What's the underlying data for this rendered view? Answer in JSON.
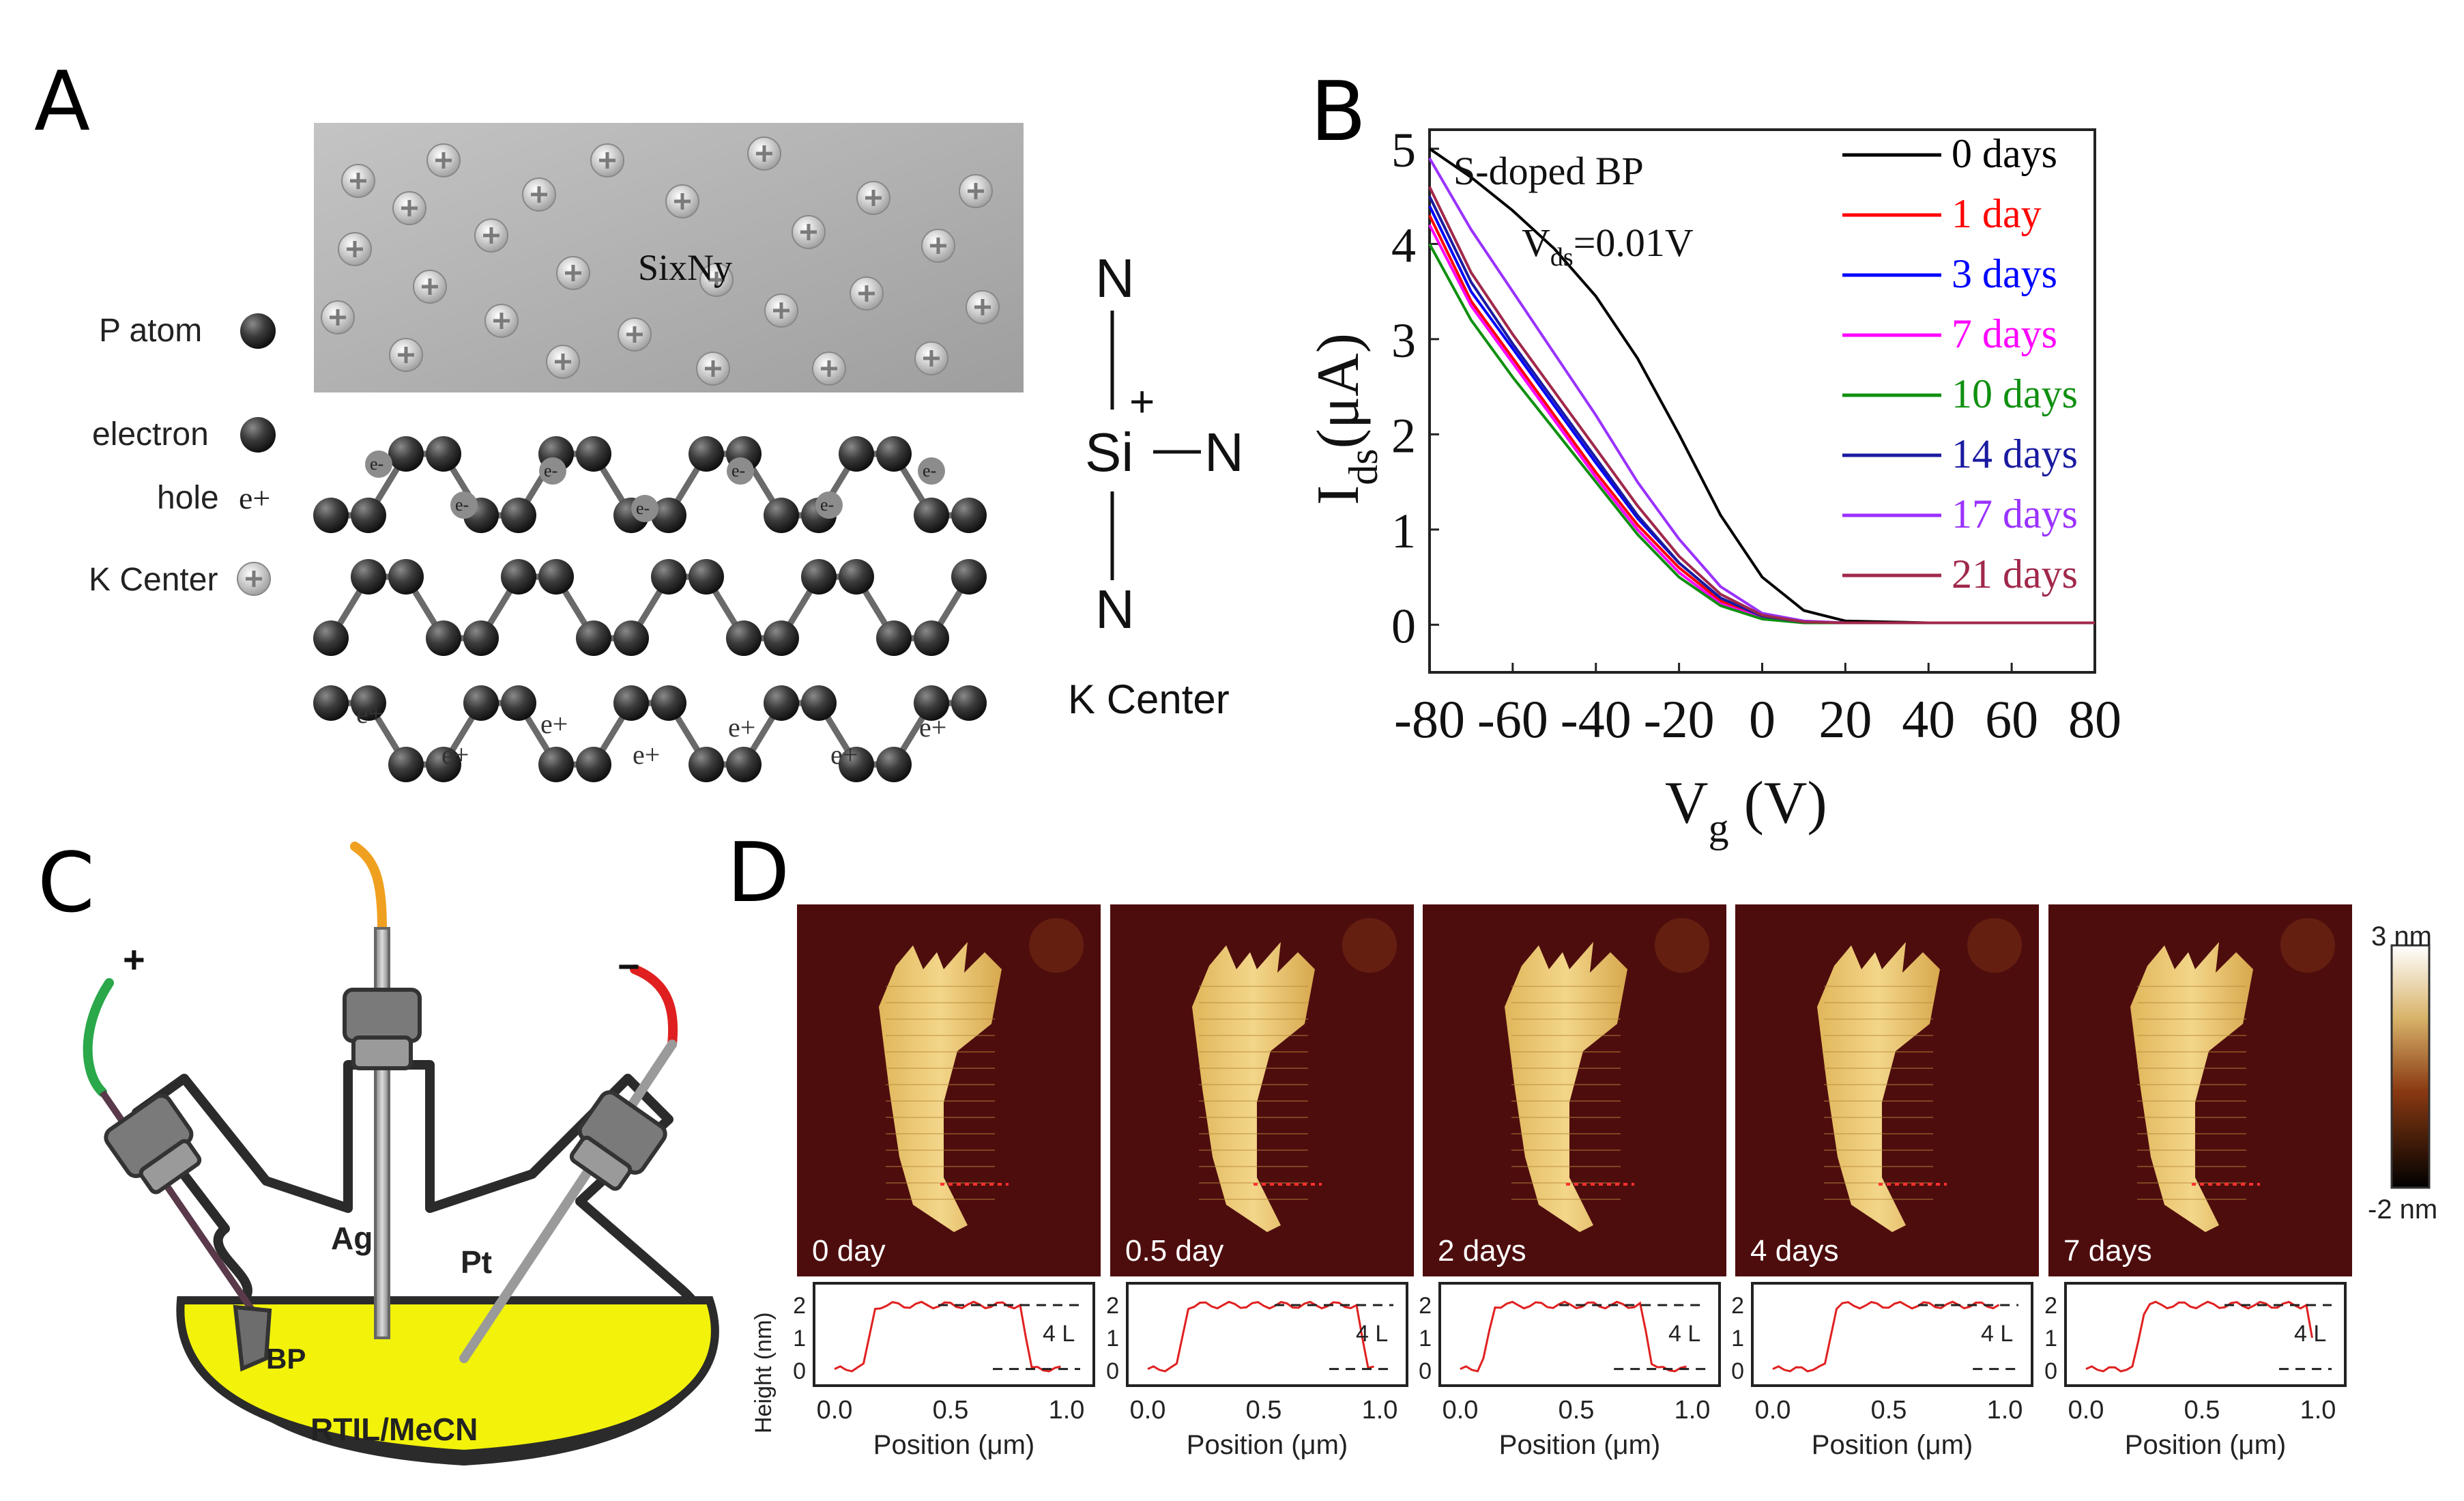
{
  "panels": {
    "A": {
      "letter": "A",
      "layer_label": "SixNy",
      "legend": [
        "P atom",
        "electron",
        "hole",
        "K Center"
      ],
      "hole_symbol": "e+",
      "electron_symbol": "e-",
      "k_center_caption": "K Center",
      "structure": {
        "top": "N",
        "left": "Si",
        "right": "N",
        "bottom": "N",
        "charge": "+"
      }
    },
    "B": {
      "letter": "B",
      "annotation_1": "S-doped BP",
      "annotation_2_main": "V",
      "annotation_2_sub": "ds",
      "annotation_2_value": "=0.01V"
    },
    "C": {
      "letter": "C",
      "plus": "+",
      "minus": "−",
      "labels": {
        "ag": "Ag",
        "pt": "Pt",
        "bp": "BP",
        "solution": "RTIL/MeCN"
      },
      "solution_color": "#f2f20a"
    },
    "D": {
      "letter": "D",
      "colorbar_max": "3 nm",
      "colorbar_min": "-2 nm",
      "height_axis_label": "Height (nm)",
      "position_axis_label": "Position (μm)",
      "layer_tag": "4 L",
      "frames": [
        {
          "label": "0 day",
          "xticks": [
            "0.0",
            "0.5",
            "1.0"
          ]
        },
        {
          "label": "0.5 day",
          "xticks": [
            "0.0",
            "0.5",
            "1.0"
          ]
        },
        {
          "label": "2 days",
          "xticks": [
            "0.0",
            "0.5",
            "1.0"
          ]
        },
        {
          "label": "4 days",
          "xticks": [
            "0.0",
            "0.5",
            "1.0"
          ]
        },
        {
          "label": "7 days",
          "xticks": [
            "0.0",
            "0.5",
            "1.0"
          ]
        }
      ],
      "yticks": [
        "2",
        "1",
        "0"
      ]
    }
  },
  "chart_data": {
    "type": "line",
    "title": "",
    "xlabel_main": "V",
    "xlabel_sub": "g",
    "xlabel_unit": " (V)",
    "ylabel_main": "I",
    "ylabel_sub": "ds",
    "ylabel_unit": "(μA)",
    "xlim": [
      -80,
      80
    ],
    "ylim": [
      -0.5,
      5.2
    ],
    "xticks": [
      -80,
      -60,
      -40,
      -20,
      0,
      20,
      40,
      60,
      80
    ],
    "yticks": [
      0,
      1,
      2,
      3,
      4,
      5
    ],
    "x": [
      -80,
      -70,
      -60,
      -50,
      -40,
      -30,
      -20,
      -10,
      0,
      10,
      20,
      40,
      80
    ],
    "series": [
      {
        "name": "0 days",
        "color": "#000000",
        "values": [
          5.0,
          4.7,
          4.35,
          3.95,
          3.45,
          2.8,
          2.0,
          1.15,
          0.5,
          0.15,
          0.04,
          0.02,
          0.02
        ]
      },
      {
        "name": "1 day",
        "color": "#ff0000",
        "values": [
          4.3,
          3.4,
          2.8,
          2.2,
          1.6,
          1.05,
          0.6,
          0.25,
          0.08,
          0.03,
          0.02,
          0.02,
          0.02
        ]
      },
      {
        "name": "3 days",
        "color": "#0000ff",
        "values": [
          4.4,
          3.5,
          2.9,
          2.3,
          1.7,
          1.12,
          0.65,
          0.28,
          0.09,
          0.03,
          0.02,
          0.02,
          0.02
        ]
      },
      {
        "name": "7 days",
        "color": "#ff00ff",
        "values": [
          4.2,
          3.35,
          2.75,
          2.15,
          1.55,
          1.0,
          0.55,
          0.22,
          0.07,
          0.03,
          0.02,
          0.02,
          0.02
        ]
      },
      {
        "name": "10 days",
        "color": "#109010",
        "values": [
          4.0,
          3.2,
          2.6,
          2.05,
          1.5,
          0.95,
          0.5,
          0.2,
          0.06,
          0.02,
          0.02,
          0.02,
          0.02
        ]
      },
      {
        "name": "14 days",
        "color": "#1a1aa0",
        "values": [
          4.5,
          3.6,
          2.95,
          2.35,
          1.75,
          1.15,
          0.65,
          0.28,
          0.09,
          0.03,
          0.02,
          0.02,
          0.02
        ]
      },
      {
        "name": "17 days",
        "color": "#9a32ff",
        "values": [
          4.9,
          4.15,
          3.5,
          2.85,
          2.2,
          1.5,
          0.9,
          0.4,
          0.12,
          0.04,
          0.02,
          0.02,
          0.02
        ]
      },
      {
        "name": "21 days",
        "color": "#a0284a",
        "values": [
          4.6,
          3.7,
          3.05,
          2.45,
          1.85,
          1.25,
          0.72,
          0.32,
          0.1,
          0.03,
          0.02,
          0.02,
          0.02
        ]
      }
    ]
  }
}
